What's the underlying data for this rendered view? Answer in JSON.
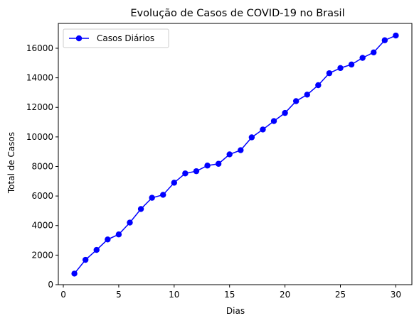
{
  "chart_data": {
    "type": "line",
    "title": "Evolução de Casos de COVID-19 no Brasil",
    "xlabel": "Dias",
    "ylabel": "Total de Casos",
    "xlim": [
      -0.45,
      31.45
    ],
    "ylim": [
      0,
      17680
    ],
    "xticks": [
      0,
      5,
      10,
      15,
      20,
      25,
      30
    ],
    "yticks": [
      0,
      2000,
      4000,
      6000,
      8000,
      10000,
      12000,
      14000,
      16000
    ],
    "grid": false,
    "legend_position": "top-left",
    "series": [
      {
        "name": "Casos Diários",
        "color": "#0000ff",
        "marker": "circle",
        "x": [
          1,
          2,
          3,
          4,
          5,
          6,
          7,
          8,
          9,
          10,
          11,
          12,
          13,
          14,
          15,
          16,
          17,
          18,
          19,
          20,
          21,
          22,
          23,
          24,
          25,
          26,
          27,
          28,
          29,
          30
        ],
        "y": [
          750,
          1680,
          2350,
          3060,
          3400,
          4200,
          5120,
          5880,
          6080,
          6900,
          7530,
          7680,
          8060,
          8180,
          8820,
          9100,
          9970,
          10500,
          11070,
          11620,
          12420,
          12860,
          13500,
          14310,
          14660,
          14900,
          15350,
          15720,
          16540,
          16860
        ]
      }
    ]
  }
}
